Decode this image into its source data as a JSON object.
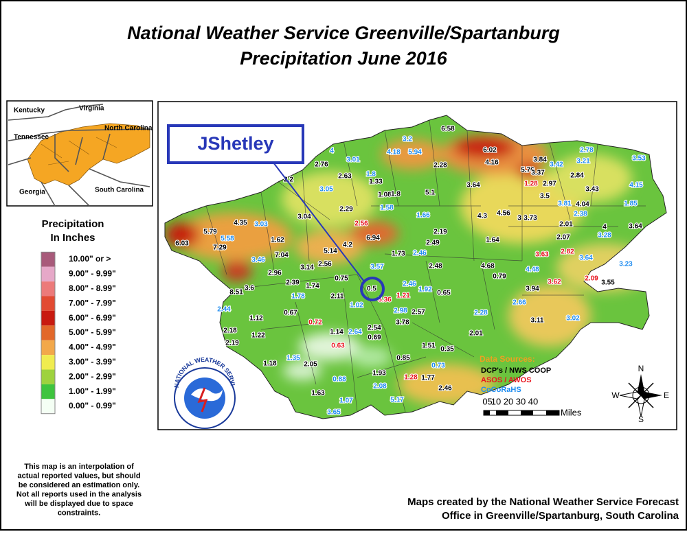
{
  "title": [
    "National Weather Service Greenville/Spartanburg",
    "Precipitation June 2016"
  ],
  "inset": {
    "labels": [
      "Kentucky",
      "Virginia",
      "Tennessee",
      "North Carolina",
      "Georgia",
      "South Carolina"
    ]
  },
  "legend": {
    "title": [
      "Precipitation",
      "In Inches"
    ],
    "classes": [
      {
        "label": "10.00\" or >",
        "color": "#a85a7a"
      },
      {
        "label": "9.00\" - 9.99\"",
        "color": "#e6a8c8"
      },
      {
        "label": "8.00\" - 8.99\"",
        "color": "#ec7a7a"
      },
      {
        "label": "7.00\" - 7.99\"",
        "color": "#e24a32"
      },
      {
        "label": "6.00\" - 6.99\"",
        "color": "#c81a10"
      },
      {
        "label": "5.00\" - 5.99\"",
        "color": "#e2682a"
      },
      {
        "label": "4.00\" - 4.99\"",
        "color": "#f2a84a"
      },
      {
        "label": "3.00\" - 3.99\"",
        "color": "#f0ec50"
      },
      {
        "label": "2.00\" - 2.99\"",
        "color": "#9ed23e"
      },
      {
        "label": "1.00\" - 1.99\"",
        "color": "#3ec43e"
      },
      {
        "label": "0.00\" - 0.99\"",
        "color": "#f4fff4"
      }
    ]
  },
  "annotation": "JShetley",
  "data_sources": {
    "title": "Data Sources:",
    "sources": [
      {
        "label": "DCP's / NWS COOP",
        "color": "#000000",
        "stations": [
          "2.76",
          "2.63",
          "1.33",
          "1.08",
          "1.8",
          "5.1",
          "2.28",
          "6.58",
          "6.02",
          "4.16",
          "5.76",
          "3.84",
          "3.37",
          "3.64",
          "2.97",
          "3.5",
          "2.84",
          "3.43",
          "4.04",
          "2.2",
          "2.29",
          "3.04",
          "4.35",
          "5.79",
          "6.03",
          "7.29",
          "1.62",
          "7.04",
          "2.96",
          "3.14",
          "2.56",
          "5.14",
          "4.2",
          "6.94",
          "2.19",
          "2.49",
          "1.73",
          "2.48",
          "4.3",
          "4.56",
          "3",
          "3.73",
          "1.64",
          "2.01",
          "2.07",
          "4",
          "3.64",
          "4.68",
          "0.79",
          "3.94",
          "3.55",
          "3.11",
          "2.01",
          "3.6",
          "8.51",
          "2.39",
          "1.74",
          "0.75",
          "2.11",
          "0.67",
          "1.12",
          "1.22",
          "2.18",
          "2.19",
          "1.18",
          "2.05",
          "1.14",
          "2.54",
          "0.69",
          "3.78",
          "2.57",
          "0.65",
          "1.51",
          "0.35",
          "0.85",
          "1.93",
          "1.77",
          "2.46",
          "1.63",
          "0.5"
        ]
      },
      {
        "label": "ASOS / AWOS",
        "color": "#e8141e",
        "stations": [
          "1.28",
          "2.56",
          "3.63",
          "2.82",
          "3.62",
          "2.09",
          "5.36",
          "1.21",
          "0.72",
          "0.63",
          "1.28"
        ]
      },
      {
        "label": "CoCoRaHS",
        "color": "#1e8cf0",
        "stations": [
          "4",
          "3.01",
          "3.2",
          "4.18",
          "5.94",
          "1.8",
          "3.05",
          "1.58",
          "1.66",
          "3.03",
          "5.58",
          "3.46",
          "2.46",
          "3.57",
          "2.46",
          "1.92",
          "1.78",
          "1.02",
          "2.98",
          "2.44",
          "2.64",
          "1.35",
          "0.88",
          "2.08",
          "0.73",
          "5.17",
          "1.07",
          "3.65",
          "2.28",
          "2.66",
          "3.02",
          "4.48",
          "3.64",
          "3.23",
          "3.28",
          "3.81",
          "2.38",
          "1.85",
          "4.15",
          "3.53",
          "2.78",
          "3.21",
          "3.42"
        ]
      }
    ]
  },
  "scale": {
    "labels": [
      "0",
      "5",
      "10",
      "20",
      "30",
      "40"
    ],
    "unit": "Miles"
  },
  "compass": [
    "N",
    "E",
    "S",
    "W"
  ],
  "logo": "NATIONAL WEATHER SERVICE",
  "disclaimer": [
    "This map is an interpolation of",
    "actual reported values, but should",
    "be considered an estimation only.",
    "Not all reports used in the analysis",
    "will be displayed due to space",
    "constraints."
  ],
  "credit": [
    "Maps created by the National Weather Service Forecast",
    "Office in Greenville/Spartanburg, South Carolina"
  ]
}
